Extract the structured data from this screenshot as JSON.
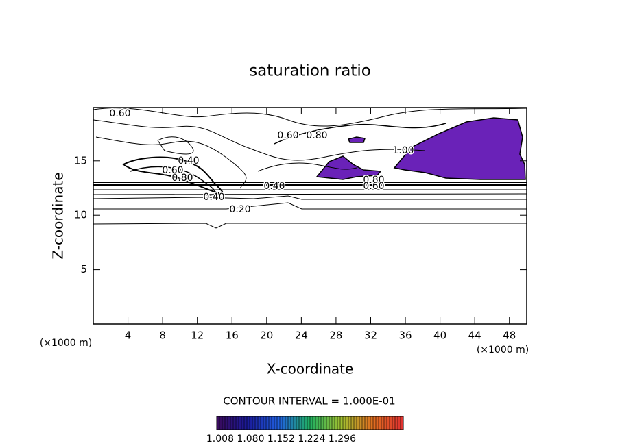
{
  "chart_data": {
    "type": "contour",
    "title": "saturation ratio",
    "x_label": "X-coordinate",
    "y_label": "Z-coordinate",
    "x_unit": "(×1000 m)",
    "y_unit": "(×1000 m)",
    "xlim": [
      0,
      50
    ],
    "ylim": [
      0,
      19.9
    ],
    "xticks": [
      4,
      8,
      12,
      16,
      20,
      24,
      28,
      32,
      36,
      40,
      44,
      48
    ],
    "yticks": [
      5,
      10,
      15
    ],
    "levels": [
      0.2,
      0.4,
      0.6,
      0.8,
      1.0
    ],
    "value_labels": [
      "0.20",
      "0.40",
      "0.60",
      "0.80",
      "1.00"
    ],
    "contour_interval": "CONTOUR INTERVAL = 1.000E-01",
    "fill_color": "#6a22b8",
    "colorbar": {
      "lim": [
        1.0,
        1.44
      ],
      "ticks": [
        1.008,
        {
          "value": 1.08,
          "label": "1.080"
        },
        1.152,
        1.224,
        1.296
      ],
      "colors": [
        "#3a0a5a",
        "#1a1a9a",
        "#2060e0",
        "#20b060",
        "#a0c030",
        "#e07020",
        "#e03030"
      ]
    }
  }
}
